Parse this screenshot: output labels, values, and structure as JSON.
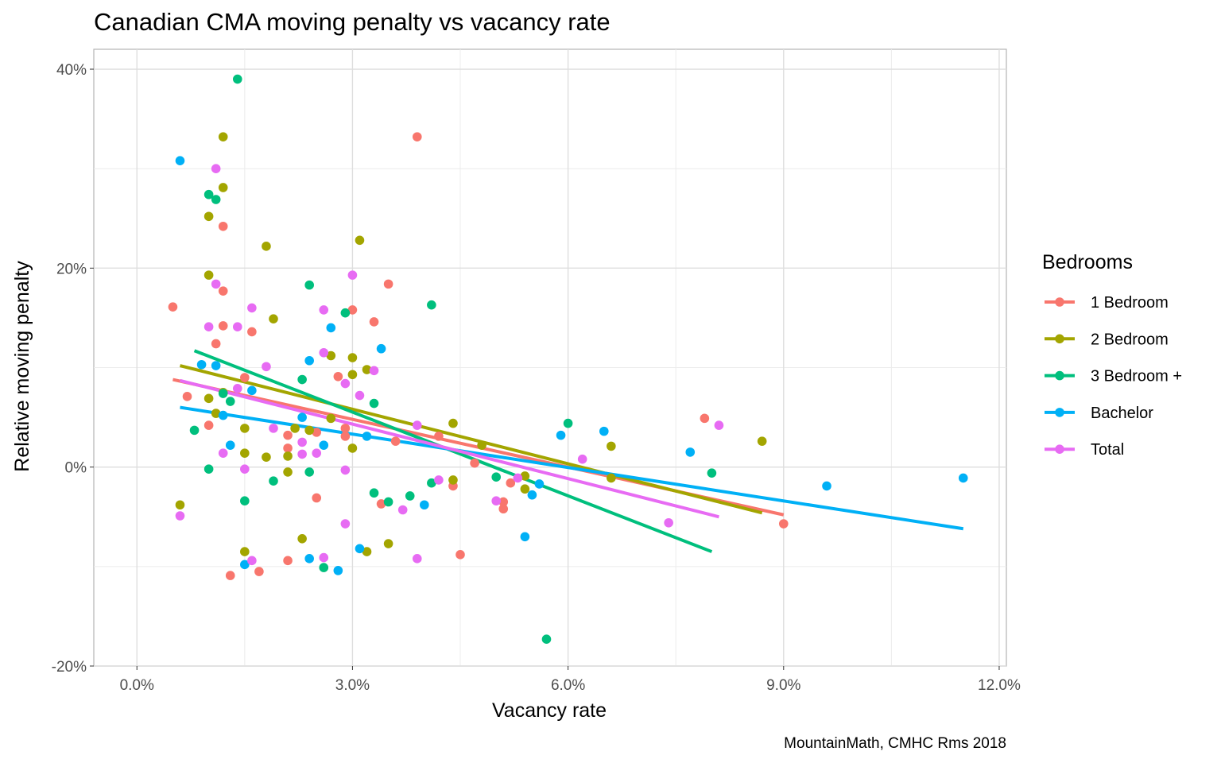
{
  "chart_data": {
    "type": "scatter",
    "title": "Canadian CMA moving penalty vs vacancy rate",
    "xlabel": "Vacancy rate",
    "ylabel": "Relative moving penalty",
    "caption": "MountainMath, CMHC Rms 2018",
    "xlim": [
      -0.6,
      12.1
    ],
    "ylim": [
      -20,
      42
    ],
    "x_ticks": [
      0,
      3,
      6,
      9,
      12
    ],
    "x_tick_labels": [
      "0.0%",
      "3.0%",
      "6.0%",
      "9.0%",
      "12.0%"
    ],
    "y_ticks": [
      -20,
      0,
      20,
      40
    ],
    "y_tick_labels": [
      "-20%",
      "0%",
      "20%",
      "40%"
    ],
    "grid": true,
    "legend": {
      "title": "Bedrooms",
      "position": "right"
    },
    "series": [
      {
        "name": "1 Bedroom",
        "color": "#F8766D",
        "fit": [
          [
            0.5,
            8.8
          ],
          [
            9.0,
            -4.8
          ]
        ],
        "points": [
          [
            0.5,
            16.1
          ],
          [
            0.7,
            7.1
          ],
          [
            1.0,
            4.2
          ],
          [
            1.1,
            12.4
          ],
          [
            1.2,
            24.2
          ],
          [
            1.2,
            17.7
          ],
          [
            1.2,
            14.2
          ],
          [
            1.5,
            9.0
          ],
          [
            1.6,
            13.6
          ],
          [
            1.3,
            -10.9
          ],
          [
            1.7,
            -10.5
          ],
          [
            2.1,
            3.2
          ],
          [
            2.1,
            1.9
          ],
          [
            2.1,
            -9.4
          ],
          [
            2.5,
            3.5
          ],
          [
            2.5,
            -3.1
          ],
          [
            2.8,
            9.1
          ],
          [
            2.9,
            3.9
          ],
          [
            2.9,
            3.1
          ],
          [
            3.0,
            15.8
          ],
          [
            3.3,
            14.6
          ],
          [
            3.5,
            18.4
          ],
          [
            3.6,
            2.6
          ],
          [
            3.9,
            33.2
          ],
          [
            3.4,
            -3.7
          ],
          [
            4.2,
            3.1
          ],
          [
            4.4,
            -1.9
          ],
          [
            4.5,
            -8.8
          ],
          [
            4.7,
            0.4
          ],
          [
            5.1,
            -3.5
          ],
          [
            5.1,
            -4.2
          ],
          [
            5.2,
            -1.6
          ],
          [
            7.9,
            4.9
          ],
          [
            9.0,
            -5.7
          ]
        ]
      },
      {
        "name": "2 Bedroom",
        "color": "#A3A500",
        "fit": [
          [
            0.6,
            10.2
          ],
          [
            8.7,
            -4.6
          ]
        ],
        "points": [
          [
            0.6,
            -3.8
          ],
          [
            1.0,
            25.2
          ],
          [
            1.0,
            19.3
          ],
          [
            1.0,
            6.9
          ],
          [
            1.1,
            5.4
          ],
          [
            1.2,
            33.2
          ],
          [
            1.2,
            28.1
          ],
          [
            1.2,
            7.5
          ],
          [
            1.5,
            3.9
          ],
          [
            1.5,
            1.4
          ],
          [
            1.5,
            -8.5
          ],
          [
            1.8,
            22.2
          ],
          [
            1.8,
            1.0
          ],
          [
            1.9,
            14.9
          ],
          [
            2.1,
            1.1
          ],
          [
            2.1,
            -0.5
          ],
          [
            2.2,
            3.9
          ],
          [
            2.3,
            -7.2
          ],
          [
            2.4,
            3.7
          ],
          [
            2.7,
            11.2
          ],
          [
            2.7,
            4.9
          ],
          [
            3.0,
            11.0
          ],
          [
            3.0,
            9.3
          ],
          [
            3.0,
            1.9
          ],
          [
            3.1,
            22.8
          ],
          [
            3.2,
            9.8
          ],
          [
            3.2,
            -8.5
          ],
          [
            3.5,
            -7.7
          ],
          [
            4.4,
            4.4
          ],
          [
            4.4,
            -1.3
          ],
          [
            4.8,
            2.2
          ],
          [
            5.4,
            -0.9
          ],
          [
            5.4,
            -2.2
          ],
          [
            6.6,
            2.1
          ],
          [
            6.6,
            -1.1
          ],
          [
            8.7,
            2.6
          ]
        ]
      },
      {
        "name": "3 Bedroom +",
        "color": "#00BF7D",
        "fit": [
          [
            0.8,
            11.7
          ],
          [
            8.0,
            -8.5
          ]
        ],
        "points": [
          [
            0.8,
            3.7
          ],
          [
            1.0,
            27.4
          ],
          [
            1.0,
            -0.2
          ],
          [
            1.1,
            26.9
          ],
          [
            1.2,
            7.4
          ],
          [
            1.3,
            6.6
          ],
          [
            1.4,
            39.0
          ],
          [
            1.5,
            -3.4
          ],
          [
            1.9,
            -1.4
          ],
          [
            2.3,
            8.8
          ],
          [
            2.4,
            18.3
          ],
          [
            2.4,
            -0.5
          ],
          [
            2.6,
            -10.1
          ],
          [
            2.9,
            15.5
          ],
          [
            3.3,
            6.4
          ],
          [
            3.3,
            -2.6
          ],
          [
            3.5,
            -3.5
          ],
          [
            3.8,
            -2.9
          ],
          [
            4.1,
            16.3
          ],
          [
            4.1,
            -1.6
          ],
          [
            5.0,
            -1.0
          ],
          [
            5.7,
            -17.3
          ],
          [
            6.0,
            4.4
          ],
          [
            8.0,
            -0.6
          ]
        ]
      },
      {
        "name": "Bachelor",
        "color": "#00B0F6",
        "fit": [
          [
            0.6,
            6.0
          ],
          [
            11.5,
            -6.2
          ]
        ],
        "points": [
          [
            0.6,
            30.8
          ],
          [
            0.9,
            10.3
          ],
          [
            1.1,
            10.2
          ],
          [
            1.2,
            5.2
          ],
          [
            1.3,
            2.2
          ],
          [
            1.5,
            -9.8
          ],
          [
            1.6,
            7.7
          ],
          [
            2.3,
            5.0
          ],
          [
            2.4,
            10.7
          ],
          [
            2.4,
            -9.2
          ],
          [
            2.6,
            2.2
          ],
          [
            2.7,
            14.0
          ],
          [
            2.8,
            -10.4
          ],
          [
            3.1,
            -8.2
          ],
          [
            3.2,
            3.1
          ],
          [
            3.4,
            11.9
          ],
          [
            4.0,
            -3.8
          ],
          [
            5.4,
            -7.0
          ],
          [
            5.5,
            -2.8
          ],
          [
            5.6,
            -1.7
          ],
          [
            5.9,
            3.2
          ],
          [
            6.5,
            3.6
          ],
          [
            7.7,
            1.5
          ],
          [
            9.6,
            -1.9
          ],
          [
            11.5,
            -1.1
          ]
        ]
      },
      {
        "name": "Total",
        "color": "#E76BF3",
        "fit": [
          [
            0.6,
            8.7
          ],
          [
            8.1,
            -5.0
          ]
        ],
        "points": [
          [
            0.6,
            -4.9
          ],
          [
            1.0,
            14.1
          ],
          [
            1.1,
            30.0
          ],
          [
            1.1,
            18.4
          ],
          [
            1.2,
            1.4
          ],
          [
            1.4,
            14.1
          ],
          [
            1.4,
            7.9
          ],
          [
            1.5,
            -0.2
          ],
          [
            1.6,
            16.0
          ],
          [
            1.6,
            -9.4
          ],
          [
            1.8,
            10.1
          ],
          [
            1.9,
            3.9
          ],
          [
            2.3,
            2.5
          ],
          [
            2.3,
            1.3
          ],
          [
            2.5,
            1.4
          ],
          [
            2.6,
            15.8
          ],
          [
            2.6,
            11.5
          ],
          [
            2.6,
            -9.1
          ],
          [
            2.9,
            8.4
          ],
          [
            2.9,
            -0.3
          ],
          [
            2.9,
            -5.7
          ],
          [
            3.0,
            19.3
          ],
          [
            3.1,
            7.2
          ],
          [
            3.3,
            9.7
          ],
          [
            3.7,
            -4.3
          ],
          [
            3.9,
            4.2
          ],
          [
            3.9,
            -9.2
          ],
          [
            4.2,
            -1.3
          ],
          [
            5.0,
            -3.4
          ],
          [
            5.3,
            -1.1
          ],
          [
            6.2,
            0.8
          ],
          [
            7.4,
            -5.6
          ],
          [
            8.1,
            4.2
          ]
        ]
      }
    ]
  }
}
